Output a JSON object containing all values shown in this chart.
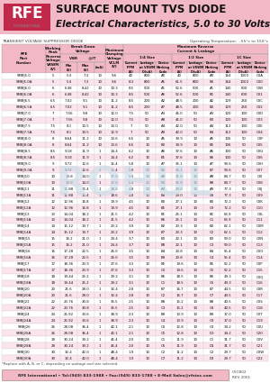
{
  "title1": "SURFACE MOUNT TVS DIODE",
  "title2": "Electrical Characteristics, 5.0 to 30 Volts",
  "header_bg": "#f2b8c6",
  "footer_text": "RFE International • Tel:(949) 833-1988 • Fax:(949) 833-1788 • E-Mail Sales@rfeinc.com",
  "footer_right": "C5CB02\nREV 2001",
  "table_title": "TRANSIENT VOLTAGE SUPPRESSOR DIODE",
  "table_title_right": "Operating Temperature:  -55°c to 150°c",
  "bg_color": "#ffffff",
  "table_header_bg": "#f2b8c6",
  "table_row_bg1": "#ffffff",
  "table_row_bg2": "#fce4ee",
  "rows": [
    [
      "SMBJ5.0",
      "5",
      "5.4",
      "7.3",
      "10",
      "9.6",
      "40",
      "800",
      "A0",
      "40",
      "800",
      "A0",
      "164",
      "1000",
      "C0A"
    ],
    [
      "SMBJ5.0A",
      "5",
      "5.4",
      "7.3",
      "10",
      "9.6",
      "8.3",
      "800",
      "A5",
      "61.5",
      "800",
      "B0",
      "164",
      "1000",
      "C00"
    ],
    [
      "SMBJ6.0",
      "6",
      "6.48",
      "8.42",
      "10",
      "10.3",
      "8.5",
      "500",
      "A1",
      "52.6",
      "500",
      "A1",
      "140",
      "600",
      "C0B"
    ],
    [
      "SMBJ6.0A",
      "6",
      "6.48",
      "8.42",
      "10",
      "10.3",
      "8.5",
      "500",
      "A6",
      "52.6",
      "500",
      "B1",
      "140",
      "600",
      "C01"
    ],
    [
      "SMBJ6.5",
      "6.5",
      "7.02",
      "9.1",
      "10",
      "11.2",
      "8.5",
      "200",
      "A2",
      "48.5",
      "200",
      "A2",
      "129",
      "250",
      "C0C"
    ],
    [
      "SMBJ6.5A",
      "6.5",
      "7.02",
      "9.1",
      "10",
      "11.2",
      "8.5",
      "200",
      "A7",
      "48.5",
      "200",
      "B2",
      "129",
      "250",
      "C02"
    ],
    [
      "SMBJ7.0",
      "7",
      "7.56",
      "9.8",
      "10",
      "12.0",
      "7.5",
      "50",
      "A3",
      "45.0",
      "50",
      "A3",
      "120",
      "100",
      "C0D"
    ],
    [
      "SMBJ7.0A",
      "7",
      "7.56",
      "9.8",
      "10",
      "12.0",
      "7.5",
      "50",
      "A8",
      "45.0",
      "50",
      "B3",
      "120",
      "100",
      "C03"
    ],
    [
      "SMBJ7.5",
      "7.5",
      "8.1",
      "10.5",
      "10",
      "13.0",
      "7",
      "50",
      "A4",
      "42.0",
      "50",
      "A4",
      "112",
      "100",
      "C0E"
    ],
    [
      "SMBJ7.5A",
      "7.5",
      "8.1",
      "10.5",
      "10",
      "12.9",
      "7",
      "50",
      "A9",
      "42.0",
      "50",
      "B4",
      "112",
      "100",
      "C04"
    ],
    [
      "SMBJ8.0",
      "8",
      "8.64",
      "11.2",
      "10",
      "13.6",
      "6.6",
      "10",
      "A5",
      "39.9",
      "10",
      "A5",
      "106",
      "50",
      "C0F"
    ],
    [
      "SMBJ8.0A",
      "8",
      "8.64",
      "11.2",
      "10",
      "13.6",
      "6.6",
      "10",
      "B0",
      "39.9",
      "10",
      "B5",
      "106",
      "50",
      "C05"
    ],
    [
      "SMBJ8.5",
      "8.5",
      "9.18",
      "11.9",
      "1",
      "14.4",
      "6.2",
      "10",
      "A6",
      "37.6",
      "10",
      "A6",
      "100",
      "50",
      "C0G"
    ],
    [
      "SMBJ8.5A",
      "8.5",
      "9.18",
      "11.9",
      "1",
      "14.4",
      "6.2",
      "10",
      "B1",
      "37.6",
      "10",
      "B6",
      "100",
      "50",
      "C06"
    ],
    [
      "SMBJ9.0",
      "9",
      "9.72",
      "12.6",
      "1",
      "15.4",
      "5.8",
      "10",
      "A7",
      "35.1",
      "10",
      "A7",
      "93.6",
      "50",
      "C0H"
    ],
    [
      "SMBJ9.0A",
      "9",
      "9.72",
      "12.6",
      "1",
      "15.4",
      "5.8",
      "10",
      "B2",
      "35.1",
      "10",
      "B7",
      "93.6",
      "50",
      "C07"
    ],
    [
      "SMBJ10",
      "10",
      "10.8",
      "14.0",
      "1",
      "17.0",
      "5.3",
      "10",
      "A8",
      "31.8",
      "10",
      "A8",
      "84.7",
      "50",
      "C0I"
    ],
    [
      "SMBJ10A",
      "10",
      "10.8",
      "14.0",
      "1",
      "17.0",
      "5.3",
      "10",
      "B3",
      "31.8",
      "10",
      "B8",
      "84.7",
      "50",
      "C08"
    ],
    [
      "SMBJ11",
      "11",
      "11.88",
      "15.4",
      "1",
      "18.6",
      "4.8",
      "10",
      "A9",
      "29.0",
      "10",
      "A9",
      "77.3",
      "50",
      "C0J"
    ],
    [
      "SMBJ11A",
      "11",
      "11.88",
      "15.4",
      "1",
      "18.6",
      "4.8",
      "10",
      "B4",
      "29.0",
      "10",
      "B9",
      "77.3",
      "50",
      "C09"
    ],
    [
      "SMBJ12",
      "12",
      "12.96",
      "16.8",
      "1",
      "19.9",
      "4.5",
      "10",
      "B0",
      "27.1",
      "10",
      "B0",
      "72.2",
      "50",
      "C0K"
    ],
    [
      "SMBJ12A",
      "12",
      "12.96",
      "16.8",
      "1",
      "19.9",
      "4.5",
      "10",
      "B5",
      "27.1",
      "10",
      "C0",
      "72.2",
      "50",
      "C10"
    ],
    [
      "SMBJ13",
      "13",
      "14.04",
      "18.2",
      "1",
      "21.5",
      "4.2",
      "10",
      "B1",
      "25.1",
      "10",
      "B1",
      "66.9",
      "50",
      "C0L"
    ],
    [
      "SMBJ13A",
      "13",
      "14.04",
      "18.2",
      "1",
      "21.5",
      "4.2",
      "10",
      "B6",
      "25.1",
      "10",
      "C1",
      "66.9",
      "50",
      "C11"
    ],
    [
      "SMBJ14",
      "14",
      "15.12",
      "19.7",
      "1",
      "23.2",
      "3.9",
      "10",
      "B2",
      "23.3",
      "10",
      "B2",
      "62.1",
      "50",
      "C0M"
    ],
    [
      "SMBJ14A",
      "14",
      "15.12",
      "19.7",
      "1",
      "23.2",
      "3.9",
      "10",
      "B7",
      "23.3",
      "10",
      "C2",
      "62.1",
      "50",
      "C12"
    ],
    [
      "SMBJ15",
      "15",
      "16.2",
      "21.0",
      "1",
      "24.4",
      "3.7",
      "10",
      "B3",
      "22.1",
      "10",
      "B3",
      "59.0",
      "50",
      "C0N"
    ],
    [
      "SMBJ15A",
      "15",
      "16.2",
      "21.0",
      "1",
      "24.4",
      "3.7",
      "10",
      "B8",
      "22.1",
      "10",
      "C3",
      "59.0",
      "50",
      "C13"
    ],
    [
      "SMBJ16",
      "16",
      "17.28",
      "22.5",
      "1",
      "26.0",
      "3.5",
      "10",
      "B4",
      "20.8",
      "10",
      "B4",
      "55.4",
      "50",
      "C0O"
    ],
    [
      "SMBJ16A",
      "16",
      "17.28",
      "22.5",
      "1",
      "26.0",
      "3.5",
      "10",
      "B9",
      "20.8",
      "10",
      "C4",
      "55.4",
      "50",
      "C14"
    ],
    [
      "SMBJ17",
      "17",
      "18.36",
      "23.9",
      "1",
      "27.6",
      "3.3",
      "10",
      "B5",
      "19.6",
      "10",
      "B5",
      "52.2",
      "50",
      "C0P"
    ],
    [
      "SMBJ17A",
      "17",
      "18.36",
      "23.9",
      "1",
      "27.6",
      "3.3",
      "10",
      "C0",
      "19.6",
      "10",
      "C5",
      "52.2",
      "50",
      "C15"
    ],
    [
      "SMBJ18",
      "18",
      "19.44",
      "25.2",
      "1",
      "29.2",
      "3.1",
      "10",
      "B6",
      "18.5",
      "10",
      "B6",
      "49.3",
      "50",
      "C0Q"
    ],
    [
      "SMBJ18A",
      "18",
      "19.44",
      "25.2",
      "1",
      "29.2",
      "3.1",
      "10",
      "C1",
      "18.5",
      "10",
      "C6",
      "49.3",
      "50",
      "C16"
    ],
    [
      "SMBJ20",
      "20",
      "21.6",
      "28.0",
      "1",
      "32.4",
      "2.8",
      "10",
      "B7",
      "16.7",
      "10",
      "B7",
      "44.5",
      "50",
      "C0R"
    ],
    [
      "SMBJ20A",
      "20",
      "21.6",
      "28.0",
      "1",
      "32.4",
      "2.8",
      "10",
      "C2",
      "16.7",
      "10",
      "C7",
      "44.5",
      "50",
      "C17"
    ],
    [
      "SMBJ22",
      "22",
      "23.76",
      "30.8",
      "1",
      "35.5",
      "2.5",
      "10",
      "B8",
      "15.2",
      "10",
      "B8",
      "40.5",
      "50",
      "C0S"
    ],
    [
      "SMBJ22A",
      "22",
      "23.76",
      "30.8",
      "1",
      "35.5",
      "2.5",
      "10",
      "C3",
      "15.2",
      "10",
      "C8",
      "40.5",
      "50",
      "C18"
    ],
    [
      "SMBJ24",
      "24",
      "25.92",
      "33.6",
      "1",
      "38.9",
      "2.3",
      "10",
      "B9",
      "13.9",
      "10",
      "B9",
      "37.0",
      "50",
      "C0T"
    ],
    [
      "SMBJ24A",
      "24",
      "25.92",
      "33.6",
      "1",
      "38.9",
      "2.3",
      "10",
      "C4",
      "13.9",
      "10",
      "C9",
      "37.0",
      "50",
      "C19"
    ],
    [
      "SMBJ26",
      "26",
      "28.08",
      "36.4",
      "1",
      "42.1",
      "2.1",
      "10",
      "C0",
      "12.8",
      "10",
      "C0",
      "34.2",
      "50",
      "C0U"
    ],
    [
      "SMBJ26A",
      "26",
      "28.08",
      "36.4",
      "1",
      "42.1",
      "2.1",
      "10",
      "C5",
      "12.8",
      "10",
      "D0",
      "34.2",
      "50",
      "C20"
    ],
    [
      "SMBJ28",
      "28",
      "30.24",
      "39.2",
      "1",
      "45.4",
      "2.0",
      "10",
      "C1",
      "11.9",
      "10",
      "C1",
      "31.7",
      "50",
      "C0V"
    ],
    [
      "SMBJ28A",
      "28",
      "30.24",
      "39.2",
      "1",
      "45.4",
      "2.0",
      "10",
      "C6",
      "11.9",
      "10",
      "D1",
      "31.7",
      "50",
      "C21"
    ],
    [
      "SMBJ30",
      "30",
      "32.4",
      "42.0",
      "1",
      "48.4",
      "1.9",
      "10",
      "C2",
      "11.2",
      "10",
      "C2",
      "29.7",
      "50",
      "C0W"
    ],
    [
      "SMBJ30A",
      "30",
      "32.4",
      "42.0",
      "1",
      "48.4",
      "1.9",
      "10",
      "C7",
      "11.2",
      "10",
      "D2",
      "29.7",
      "50",
      "C22"
    ]
  ],
  "footnote": "*Replace with A, B, or C, depending on wattage and size selected.",
  "watermark_color": "#c8dce8"
}
